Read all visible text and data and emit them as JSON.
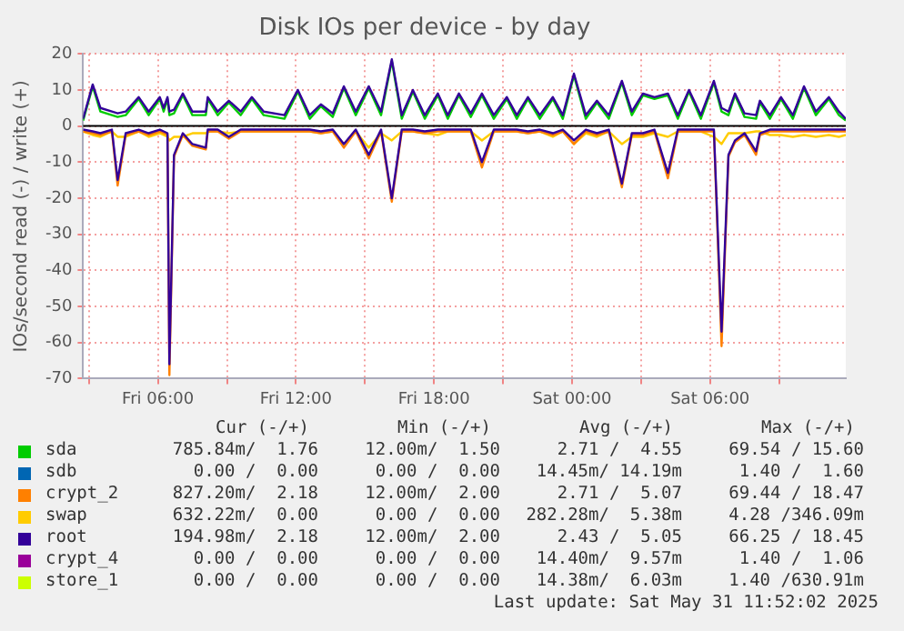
{
  "chart_data": {
    "type": "line",
    "title": "Disk IOs per device - by day",
    "ylabel": "IOs/second read (-) / write (+)",
    "x": [
      "2025-05-30T02:45",
      "2025-05-30T03:10",
      "2025-05-30T03:30",
      "2025-05-30T04:00",
      "2025-05-30T04:15",
      "2025-05-30T04:36",
      "2025-05-30T05:10",
      "2025-05-30T05:36",
      "2025-05-30T06:05",
      "2025-05-30T06:15",
      "2025-05-30T06:25",
      "2025-05-30T06:30",
      "2025-05-30T06:42",
      "2025-05-30T07:05",
      "2025-05-30T07:30",
      "2025-05-30T08:05",
      "2025-05-30T08:10",
      "2025-05-30T08:36",
      "2025-05-30T09:05",
      "2025-05-30T09:36",
      "2025-05-30T10:05",
      "2025-05-30T10:36",
      "2025-05-30T11:30",
      "2025-05-30T12:05",
      "2025-05-30T12:36",
      "2025-05-30T13:05",
      "2025-05-30T13:36",
      "2025-05-30T14:05",
      "2025-05-30T14:36",
      "2025-05-30T15:10",
      "2025-05-30T15:42",
      "2025-05-30T16:10",
      "2025-05-30T16:36",
      "2025-05-30T17:05",
      "2025-05-30T17:36",
      "2025-05-30T18:10",
      "2025-05-30T18:36",
      "2025-05-30T19:05",
      "2025-05-30T19:36",
      "2025-05-30T20:05",
      "2025-05-30T20:36",
      "2025-05-30T21:10",
      "2025-05-30T21:36",
      "2025-05-30T22:05",
      "2025-05-30T22:36",
      "2025-05-30T23:10",
      "2025-05-30T23:36",
      "2025-05-31T00:05",
      "2025-05-31T00:36",
      "2025-05-31T01:05",
      "2025-05-31T01:36",
      "2025-05-31T02:10",
      "2025-05-31T02:36",
      "2025-05-31T03:05",
      "2025-05-31T03:35",
      "2025-05-31T04:10",
      "2025-05-31T04:36",
      "2025-05-31T05:05",
      "2025-05-31T05:36",
      "2025-05-31T06:10",
      "2025-05-31T06:30",
      "2025-05-31T06:48",
      "2025-05-31T07:05",
      "2025-05-31T07:30",
      "2025-05-31T08:00",
      "2025-05-31T08:10",
      "2025-05-31T08:36",
      "2025-05-31T09:05",
      "2025-05-31T09:36",
      "2025-05-31T10:05",
      "2025-05-31T10:36",
      "2025-05-31T11:10",
      "2025-05-31T11:36",
      "2025-05-31T11:54"
    ],
    "series": [
      {
        "name": "sda",
        "color": "#00cc00",
        "values": [
          1.5,
          11,
          4,
          3,
          2.5,
          3,
          7.5,
          3,
          7.5,
          4,
          7.5,
          3,
          3.5,
          8.5,
          3,
          3,
          7.5,
          3,
          6.5,
          3,
          7.5,
          3,
          2,
          9.5,
          2,
          5.5,
          2.5,
          10.5,
          3,
          10.5,
          3,
          18,
          2,
          9.5,
          2,
          8.5,
          2,
          8.5,
          2.5,
          8.5,
          2,
          7.5,
          2,
          7.5,
          2,
          7.5,
          2,
          14,
          2,
          6.5,
          2,
          12,
          3,
          8.5,
          7.5,
          8.5,
          2,
          9.5,
          2,
          12,
          4,
          3,
          8.5,
          2.5,
          2,
          6.5,
          2,
          7.5,
          2,
          10.5,
          3,
          7.5,
          3,
          1.5
        ]
      },
      {
        "name": "sdb",
        "color": "#0066b3",
        "values": [
          null,
          null,
          null,
          null,
          null,
          null,
          null,
          null,
          null,
          null,
          null,
          null,
          null,
          null,
          null,
          null,
          null,
          null,
          null,
          null,
          null,
          null,
          null,
          null,
          null,
          null,
          null,
          null,
          null,
          null,
          null,
          null,
          null,
          null,
          null,
          null,
          null,
          null,
          null,
          null,
          null,
          null,
          null,
          null,
          null,
          null,
          null,
          null,
          null,
          null,
          null,
          null,
          null,
          null,
          null,
          null,
          null,
          null,
          null,
          null,
          null,
          null,
          null,
          null,
          null,
          null,
          null,
          null,
          null,
          null,
          null,
          null,
          null,
          null
        ]
      },
      {
        "name": "crypt_2",
        "color": "#ff8000",
        "values": [
          null,
          null,
          null,
          null,
          null,
          null,
          null,
          null,
          null,
          null,
          null,
          null,
          null,
          null,
          null,
          null,
          null,
          null,
          null,
          null,
          null,
          null,
          null,
          null,
          null,
          null,
          null,
          null,
          null,
          null,
          null,
          null,
          null,
          null,
          null,
          null,
          null,
          null,
          null,
          null,
          null,
          null,
          null,
          null,
          null,
          null,
          null,
          null,
          null,
          null,
          null,
          null,
          null,
          null,
          null,
          null,
          null,
          null,
          null,
          null,
          null,
          null,
          null,
          null,
          null,
          null,
          null,
          null,
          null,
          null,
          null,
          null,
          null,
          null
        ]
      },
      {
        "name": "swap",
        "color": "#ffcc00",
        "values": [
          null,
          null,
          null,
          null,
          null,
          null,
          null,
          null,
          null,
          null,
          null,
          null,
          null,
          null,
          null,
          null,
          null,
          null,
          null,
          null,
          null,
          null,
          null,
          null,
          null,
          null,
          null,
          null,
          null,
          null,
          null,
          null,
          null,
          null,
          null,
          null,
          null,
          null,
          null,
          null,
          null,
          null,
          null,
          null,
          null,
          null,
          null,
          null,
          null,
          null,
          null,
          null,
          null,
          null,
          null,
          null,
          null,
          null,
          null,
          null,
          null,
          null,
          null,
          null,
          null,
          null,
          null,
          null,
          null,
          null,
          null,
          null,
          null,
          null
        ]
      },
      {
        "name": "root",
        "color": "#330099",
        "values": [
          2,
          11.5,
          5,
          4,
          3.5,
          4,
          8,
          4,
          8,
          5,
          8,
          4,
          4.5,
          9,
          4,
          4,
          8,
          4,
          7,
          4,
          8,
          4,
          3,
          10,
          3,
          6,
          3.5,
          11,
          4,
          11,
          4,
          18.5,
          3,
          10,
          3,
          9,
          3,
          9,
          3.5,
          9,
          3,
          8,
          3,
          8,
          3,
          8,
          3,
          14.5,
          3,
          7,
          3,
          12.5,
          4,
          9,
          8,
          9,
          3,
          10,
          3,
          12.5,
          5,
          4,
          9,
          3.5,
          3,
          7,
          3,
          8,
          3,
          11,
          4,
          8,
          4,
          2
        ]
      },
      {
        "name": "crypt_4",
        "color": "#990099",
        "values": [
          null,
          null,
          null,
          null,
          null,
          null,
          null,
          null,
          null,
          null,
          null,
          null,
          null,
          null,
          null,
          null,
          null,
          null,
          null,
          null,
          null,
          null,
          null,
          null,
          null,
          null,
          null,
          null,
          null,
          null,
          null,
          null,
          null,
          null,
          null,
          null,
          null,
          null,
          null,
          null,
          null,
          null,
          null,
          null,
          null,
          null,
          null,
          null,
          null,
          null,
          null,
          null,
          null,
          null,
          null,
          null,
          null,
          null,
          null,
          null,
          null,
          null,
          null,
          null,
          null,
          null,
          null,
          null,
          null,
          null,
          null,
          null,
          null,
          null
        ]
      },
      {
        "name": "store_1",
        "color": "#ccff00",
        "values": [
          null,
          null,
          null,
          null,
          null,
          null,
          null,
          null,
          null,
          null,
          null,
          null,
          null,
          null,
          null,
          null,
          null,
          null,
          null,
          null,
          null,
          null,
          null,
          null,
          null,
          null,
          null,
          null,
          null,
          null,
          null,
          null,
          null,
          null,
          null,
          null,
          null,
          null,
          null,
          null,
          null,
          null,
          null,
          null,
          null,
          null,
          null,
          null,
          null,
          null,
          null,
          null,
          null,
          null,
          null,
          null,
          null,
          null,
          null,
          null,
          null,
          null,
          null,
          null,
          null,
          null,
          null,
          null,
          null,
          null,
          null,
          null,
          null,
          null
        ]
      },
      {
        "color": "#ffcc00",
        "values": [
          -1.5,
          -2.5,
          -3,
          -1.5,
          -3,
          -3,
          -1.5,
          -3,
          -2,
          -2.5,
          -3,
          -4,
          -3,
          -3,
          -2,
          -2,
          -1.5,
          -1.5,
          -2,
          -1.5,
          -1.5,
          -1.5,
          -1.5,
          -1.5,
          -1.5,
          -2,
          -1.5,
          -5,
          -1.5,
          -6,
          -2,
          -4,
          -1.5,
          -1.5,
          -2,
          -2.5,
          -1.5,
          -1.5,
          -1.5,
          -4,
          -1.5,
          -1.5,
          -1.5,
          -2,
          -1.5,
          -3,
          -1.5,
          -5,
          -2,
          -3,
          -1.5,
          -5,
          -3,
          -3,
          -2,
          -3,
          -1.5,
          -1.5,
          -1.5,
          -3,
          -5,
          -2,
          -2,
          -2,
          -1.5,
          -1.5,
          -2.5,
          -2.5,
          -3,
          -2.5,
          -3,
          -2.5,
          -3,
          -2.5
        ]
      },
      {
        "color": "#ff8000",
        "values": [
          -1.5,
          -2,
          -2.5,
          -1.5,
          -16.5,
          -2.5,
          -1.5,
          -2.5,
          -1.5,
          -2,
          -2.5,
          -69,
          -8.5,
          -2.5,
          -5.5,
          -6.5,
          -1.5,
          -1.5,
          -3.5,
          -1.5,
          -1.5,
          -1.5,
          -1.5,
          -1.5,
          -1.5,
          -2,
          -1.5,
          -6,
          -1.5,
          -9,
          -1.5,
          -21,
          -1.5,
          -1.5,
          -2,
          -1.5,
          -1.5,
          -1.5,
          -1.5,
          -11.5,
          -1.5,
          -1.5,
          -1.5,
          -2,
          -1.5,
          -2.5,
          -1.5,
          -5,
          -1.5,
          -2.5,
          -1.5,
          -17,
          -2.5,
          -2.5,
          -1.5,
          -14.5,
          -1.5,
          -1.5,
          -1.5,
          -1.5,
          -61,
          -8.5,
          -4.5,
          -2.5,
          -8,
          -2.5,
          -1.5,
          -1.5,
          -1.5,
          -1.5,
          -1.5,
          -1.5,
          -1.5,
          -1.5
        ]
      },
      {
        "color": "#330099",
        "values": [
          -1,
          -1.5,
          -2,
          -1,
          -15,
          -2,
          -1,
          -2,
          -1,
          -1.5,
          -2,
          -66,
          -8,
          -2,
          -5,
          -6,
          -1,
          -1,
          -3,
          -1,
          -1,
          -1,
          -1,
          -1,
          -1,
          -1.5,
          -1,
          -5,
          -1,
          -8,
          -1,
          -20,
          -1,
          -1,
          -1.5,
          -1,
          -1,
          -1,
          -1,
          -10,
          -1,
          -1,
          -1,
          -1.5,
          -1,
          -2,
          -1,
          -4,
          -1,
          -2,
          -1,
          -16,
          -2,
          -2,
          -1,
          -13,
          -1,
          -1,
          -1,
          -1,
          -57,
          -8,
          -4,
          -2,
          -7,
          -2,
          -1,
          -1,
          -1,
          -1,
          -1,
          -1,
          -1,
          -1
        ]
      }
    ],
    "xlim": [
      "2025-05-30T02:45",
      "2025-05-31T11:54"
    ],
    "xticks": [
      {
        "value": "2025-05-30T03:00",
        "label": null
      },
      {
        "value": "2025-05-30T06:00",
        "label": "Fri 06:00"
      },
      {
        "value": "2025-05-30T09:00",
        "label": null
      },
      {
        "value": "2025-05-30T12:00",
        "label": "Fri 12:00"
      },
      {
        "value": "2025-05-30T15:00",
        "label": null
      },
      {
        "value": "2025-05-30T18:00",
        "label": "Fri 18:00"
      },
      {
        "value": "2025-05-30T21:00",
        "label": null
      },
      {
        "value": "2025-05-31T00:00",
        "label": "Sat 00:00"
      },
      {
        "value": "2025-05-31T03:00",
        "label": null
      },
      {
        "value": "2025-05-31T06:00",
        "label": "Sat 06:00"
      },
      {
        "value": "2025-05-31T09:00",
        "label": null
      }
    ],
    "ylim": [
      -70,
      20
    ],
    "yticks": [
      -70,
      -60,
      -50,
      -40,
      -30,
      -20,
      -10,
      0,
      10,
      20
    ],
    "ref_lines": [
      {
        "axis": "y",
        "value": 0,
        "color": "#000000"
      }
    ],
    "grid": true,
    "legend": "bottom",
    "annotations": [
      "Cur (-/+)",
      "Min (-/+)",
      "Avg (-/+)",
      "Max (-/+)",
      "785.84m/  1.76",
      "12.00m/  1.50",
      "2.71 /  4.55",
      "69.54 / 15.60",
      "0.00 /  0.00",
      "0.00 /  0.00",
      "14.45m/ 14.19m",
      "1.40 /  1.60",
      "827.20m/  2.18",
      "12.00m/  2.00",
      "2.71 /  5.07",
      "69.44 / 18.47",
      "632.22m/  0.00",
      "0.00 /  0.00",
      "282.28m/  5.38m",
      "4.28 /346.09m",
      "194.98m/  2.18",
      "12.00m/  2.00",
      "2.43 /  5.05",
      "66.25 / 18.45",
      "0.00 /  0.00",
      "0.00 /  0.00",
      "14.40m/  9.57m",
      "1.40 /  1.06",
      "0.00 /  0.00",
      "0.00 /  0.00",
      "14.38m/  6.03m",
      "1.40 /630.91m",
      "Last update: Sat May 31 11:52:02 2025"
    ]
  }
}
